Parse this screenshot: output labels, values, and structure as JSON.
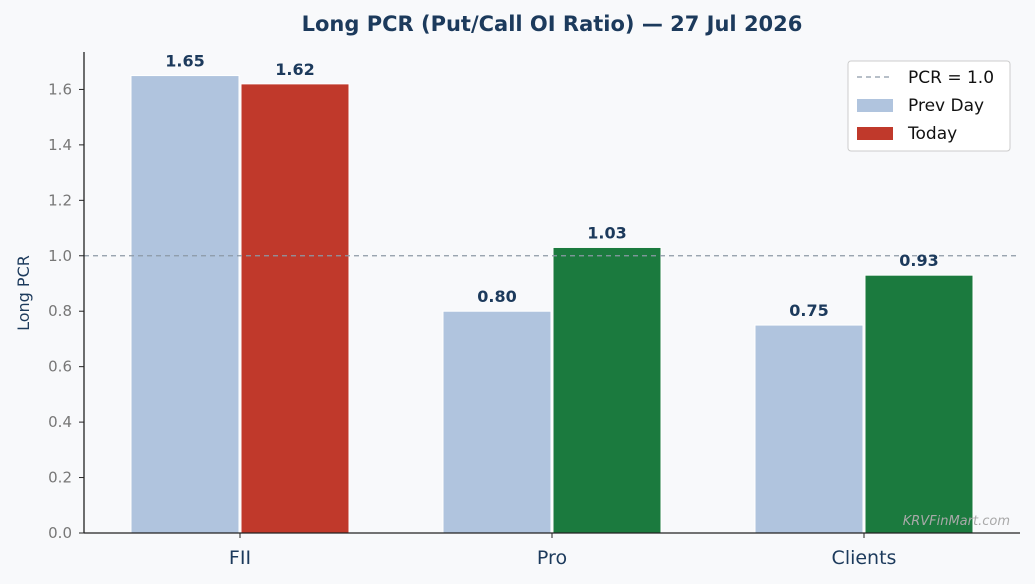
{
  "chart_data": {
    "type": "bar",
    "title": "Long PCR (Put/Call OI Ratio) — 27 Jul 2026",
    "xlabel": "",
    "ylabel": "Long PCR",
    "categories": [
      "FII",
      "Pro",
      "Clients"
    ],
    "series": [
      {
        "name": "Prev Day",
        "values": [
          1.65,
          0.8,
          0.75
        ],
        "labels": [
          "1.65",
          "0.80",
          "0.75"
        ]
      },
      {
        "name": "Today",
        "values": [
          1.62,
          1.03,
          0.93
        ],
        "labels": [
          "1.62",
          "1.03",
          "0.93"
        ]
      }
    ],
    "ylim": [
      0,
      1.735
    ],
    "yticks": [
      "0.0",
      "0.2",
      "0.4",
      "0.6",
      "0.8",
      "1.0",
      "1.2",
      "1.4",
      "1.6"
    ],
    "reference_line": {
      "value": 1.0,
      "label": "PCR = 1.0"
    },
    "legend_position": "top-right",
    "grid": false,
    "colors": {
      "prev_day": "#b0c4de",
      "today_up": "#1b7a3e",
      "today_down": "#c0392b",
      "reference_line": "#8c99a6"
    }
  },
  "watermark": "KRVFinMart.com"
}
